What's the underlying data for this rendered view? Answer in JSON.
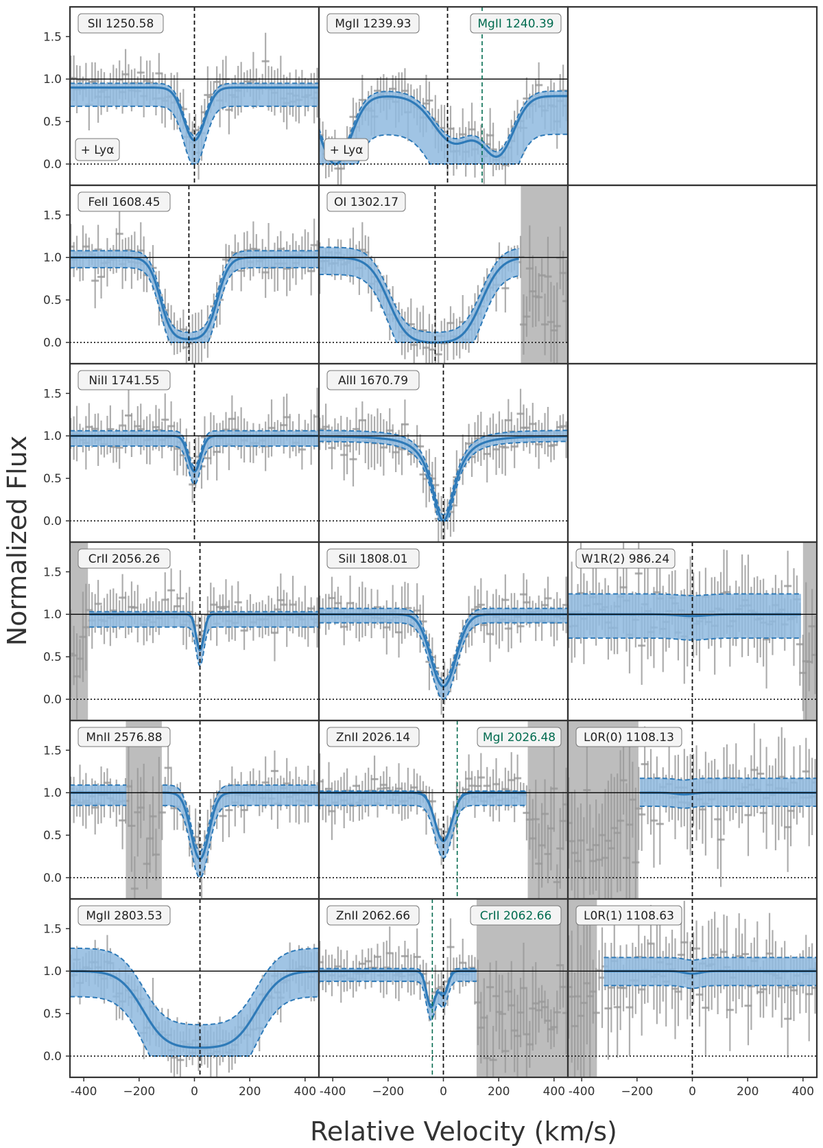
{
  "figure": {
    "xlabel": "Relative Velocity (km/s)",
    "ylabel": "Normalized Flux"
  },
  "colors": {
    "model": "#2e7ab8",
    "band_fill": "#8fbadf",
    "data": "#999999",
    "masked": "#bdbdbd",
    "blend_label": "#006b4f",
    "frame": "#333333"
  },
  "chart_data": {
    "type": "line",
    "layout": "grid 6 rows x 3 columns, shared axes",
    "xlim": [
      -450,
      450
    ],
    "ylim": [
      -0.25,
      1.85
    ],
    "x_ticks": [
      -400,
      -200,
      0,
      200,
      400
    ],
    "x_tick_labels": [
      "-400",
      "−200",
      "0",
      "200",
      "400"
    ],
    "y_ticks": [
      0.0,
      0.5,
      1.0,
      1.5
    ],
    "y_tick_labels": [
      "0.0",
      "0.5",
      "1.0",
      "1.5"
    ],
    "reference_lines": {
      "continuum": 1.0,
      "zero": 0.0
    },
    "panels": [
      {
        "row": 0,
        "col": 0,
        "label": "SII 1250.58",
        "note": "+ Lyα",
        "vcenter": 0,
        "model_range": [
          -450,
          450
        ],
        "lines": [
          {
            "v": 0,
            "depth": 0.62,
            "sigma": 38,
            "type": "gauss"
          }
        ],
        "cont": 0.9,
        "band_up": 0.05,
        "band_down": 0.22,
        "masked": [],
        "blend": []
      },
      {
        "row": 0,
        "col": 1,
        "label": "MgII 1239.93",
        "note": "+ Lyα",
        "vcenter": 15,
        "model_range": [
          -450,
          450
        ],
        "lines": [
          {
            "v": -390,
            "depth": 0.8,
            "sigma": 55,
            "type": "gauss"
          },
          {
            "v": 40,
            "depth": 0.55,
            "sigma": 75,
            "type": "gauss"
          },
          {
            "v": 200,
            "depth": 0.65,
            "sigma": 55,
            "type": "gauss"
          }
        ],
        "cont": 0.8,
        "band_up": 0.06,
        "band_down": 0.45,
        "masked": [],
        "blend": [
          {
            "v": 140,
            "label": "MgII 1240.39"
          }
        ]
      },
      {
        "row": 1,
        "col": 0,
        "label": "FeII 1608.45",
        "vcenter": -20,
        "model_range": [
          -450,
          450
        ],
        "lines": [
          {
            "v": -20,
            "depth": 0.96,
            "sigma": 55,
            "type": "satur"
          }
        ],
        "cont": 1.0,
        "band_up": 0.08,
        "band_down": 0.12,
        "masked": [],
        "blend": []
      },
      {
        "row": 1,
        "col": 1,
        "label": "OI 1302.17",
        "vcenter": -30,
        "model_range": [
          -450,
          275
        ],
        "lines": [
          {
            "v": -30,
            "depth": 1.0,
            "sigma": 90,
            "type": "satur"
          }
        ],
        "cont": 1.0,
        "band_up": 0.12,
        "band_down": 0.2,
        "masked": [
          [
            280,
            450
          ]
        ],
        "blend": []
      },
      {
        "row": 2,
        "col": 0,
        "label": "NiII 1741.55",
        "vcenter": 0,
        "model_range": [
          -450,
          450
        ],
        "lines": [
          {
            "v": 0,
            "depth": 0.42,
            "sigma": 22,
            "type": "gauss"
          }
        ],
        "cont": 1.0,
        "band_up": 0.06,
        "band_down": 0.12,
        "masked": [],
        "blend": []
      },
      {
        "row": 2,
        "col": 1,
        "label": "AlII 1670.79",
        "vcenter": 0,
        "model_range": [
          -450,
          450
        ],
        "lines": [
          {
            "v": 0,
            "depth": 1.0,
            "sigma": 60,
            "type": "lorentz"
          }
        ],
        "cont": 1.0,
        "band_up": 0.07,
        "band_down": 0.06,
        "masked": [],
        "blend": []
      },
      {
        "row": 3,
        "col": 0,
        "label": "CrII 2056.26",
        "vcenter": 20,
        "model_range": [
          -380,
          450
        ],
        "lines": [
          {
            "v": 20,
            "depth": 0.42,
            "sigma": 14,
            "type": "gauss"
          }
        ],
        "cont": 1.0,
        "band_up": 0.03,
        "band_down": 0.15,
        "masked": [
          [
            -450,
            -385
          ]
        ],
        "blend": []
      },
      {
        "row": 3,
        "col": 1,
        "label": "SiII 1808.01",
        "vcenter": 0,
        "model_range": [
          -450,
          450
        ],
        "lines": [
          {
            "v": 0,
            "depth": 0.85,
            "sigma": 45,
            "type": "gauss"
          }
        ],
        "cont": 1.0,
        "band_up": 0.07,
        "band_down": 0.1,
        "masked": [],
        "blend": []
      },
      {
        "row": 3,
        "col": 2,
        "label": "W1R(2) 986.24",
        "vcenter": 0,
        "model_range": [
          -450,
          395
        ],
        "lines": [
          {
            "v": 0,
            "depth": 0.02,
            "sigma": 50,
            "type": "gauss"
          }
        ],
        "cont": 1.0,
        "band_up": 0.24,
        "band_down": 0.28,
        "masked": [
          [
            400,
            450
          ]
        ],
        "blend": []
      },
      {
        "row": 4,
        "col": 0,
        "label": "MnII 2576.88",
        "vcenter": 20,
        "model_range": [
          -450,
          450
        ],
        "gap": [
          -245,
          -115
        ],
        "lines": [
          {
            "v": 20,
            "depth": 0.78,
            "sigma": 32,
            "type": "gauss"
          }
        ],
        "cont": 1.0,
        "band_up": 0.09,
        "band_down": 0.15,
        "masked": [
          [
            -248,
            -118
          ]
        ],
        "blend": []
      },
      {
        "row": 4,
        "col": 1,
        "label": "ZnII 2026.14",
        "vcenter": 0,
        "model_range": [
          -450,
          300
        ],
        "lines": [
          {
            "v": 0,
            "depth": 0.57,
            "sigma": 30,
            "type": "gauss"
          }
        ],
        "cont": 1.0,
        "band_up": 0.02,
        "band_down": 0.15,
        "masked": [
          [
            305,
            450
          ]
        ],
        "blend": [
          {
            "v": 50,
            "label": "MgI 2026.48"
          }
        ]
      },
      {
        "row": 4,
        "col": 2,
        "label": "L0R(0) 1108.13",
        "vcenter": 0,
        "model_range": [
          -190,
          450
        ],
        "lines": [
          {
            "v": -30,
            "depth": 0.02,
            "sigma": 30,
            "type": "gauss"
          }
        ],
        "cont": 1.0,
        "band_up": 0.17,
        "band_down": 0.16,
        "masked": [
          [
            -450,
            -195
          ]
        ],
        "blend": []
      },
      {
        "row": 5,
        "col": 0,
        "label": "MgII 2803.53",
        "vcenter": 20,
        "model_range": [
          -450,
          450
        ],
        "lines": [
          {
            "v": 20,
            "depth": 0.9,
            "sigma": 110,
            "type": "satur"
          }
        ],
        "cont": 1.0,
        "band_up": 0.27,
        "band_down": 0.3,
        "masked": [],
        "blend": []
      },
      {
        "row": 5,
        "col": 1,
        "label": "ZnII 2062.66",
        "vcenter": 0,
        "model_range": [
          -450,
          120
        ],
        "lines": [
          {
            "v": -45,
            "depth": 0.42,
            "sigma": 16,
            "type": "gauss"
          },
          {
            "v": 0,
            "depth": 0.28,
            "sigma": 16,
            "type": "gauss"
          }
        ],
        "cont": 1.0,
        "band_up": 0.03,
        "band_down": 0.12,
        "masked": [
          [
            120,
            450
          ]
        ],
        "blend": [
          {
            "v": -40,
            "label": "CrII 2062.66"
          }
        ]
      },
      {
        "row": 5,
        "col": 2,
        "label": "L0R(1) 1108.63",
        "vcenter": 0,
        "model_range": [
          -320,
          450
        ],
        "lines": [
          {
            "v": 0,
            "depth": 0.03,
            "sigma": 30,
            "type": "gauss"
          }
        ],
        "cont": 1.0,
        "band_up": 0.16,
        "band_down": 0.17,
        "masked": [
          [
            -450,
            -345
          ]
        ],
        "blend": []
      }
    ]
  }
}
